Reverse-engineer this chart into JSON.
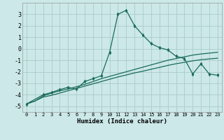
{
  "xlabel": "Humidex (Indice chaleur)",
  "bg_color": "#cce8e8",
  "grid_color": "#aacccc",
  "line_color": "#1a6b5a",
  "xlim": [
    -0.5,
    23.5
  ],
  "ylim": [
    -5.5,
    4.0
  ],
  "xticks": [
    0,
    1,
    2,
    3,
    4,
    5,
    6,
    7,
    8,
    9,
    10,
    11,
    12,
    13,
    14,
    15,
    16,
    17,
    18,
    19,
    20,
    21,
    22,
    23
  ],
  "yticks": [
    -5,
    -4,
    -3,
    -2,
    -1,
    0,
    1,
    2,
    3
  ],
  "line1_x": [
    0,
    1,
    2,
    3,
    4,
    5,
    6,
    7,
    8,
    9,
    10,
    11,
    12,
    13,
    14,
    15,
    16,
    17,
    18,
    19,
    20,
    21,
    22,
    23
  ],
  "line1_y": [
    -4.8,
    -4.55,
    -4.1,
    -3.85,
    -3.65,
    -3.5,
    -3.3,
    -3.1,
    -2.85,
    -2.6,
    -2.4,
    -2.2,
    -2.0,
    -1.8,
    -1.6,
    -1.4,
    -1.2,
    -1.0,
    -0.85,
    -0.7,
    -0.55,
    -0.45,
    -0.38,
    -0.3
  ],
  "line2_x": [
    0,
    1,
    2,
    3,
    4,
    5,
    6,
    7,
    8,
    9,
    10,
    11,
    12,
    13,
    14,
    15,
    16,
    17,
    18,
    19,
    20,
    21,
    22,
    23
  ],
  "line2_y": [
    -4.8,
    -4.55,
    -4.2,
    -4.05,
    -3.85,
    -3.65,
    -3.45,
    -3.25,
    -3.05,
    -2.85,
    -2.65,
    -2.45,
    -2.28,
    -2.1,
    -1.95,
    -1.78,
    -1.62,
    -1.45,
    -1.3,
    -1.18,
    -1.05,
    -0.95,
    -0.88,
    -0.82
  ],
  "line3_x": [
    0,
    2,
    3,
    4,
    5,
    6,
    7,
    8,
    9,
    10,
    11,
    12,
    13,
    14,
    15,
    16,
    17,
    18,
    19,
    20,
    21,
    22,
    23
  ],
  "line3_y": [
    -4.8,
    -4.0,
    -3.8,
    -3.55,
    -3.35,
    -3.5,
    -2.85,
    -2.6,
    -2.35,
    -0.3,
    3.0,
    3.35,
    2.0,
    1.2,
    0.45,
    0.1,
    -0.1,
    -0.65,
    -0.85,
    -2.2,
    -1.3,
    -2.2,
    -2.3
  ]
}
